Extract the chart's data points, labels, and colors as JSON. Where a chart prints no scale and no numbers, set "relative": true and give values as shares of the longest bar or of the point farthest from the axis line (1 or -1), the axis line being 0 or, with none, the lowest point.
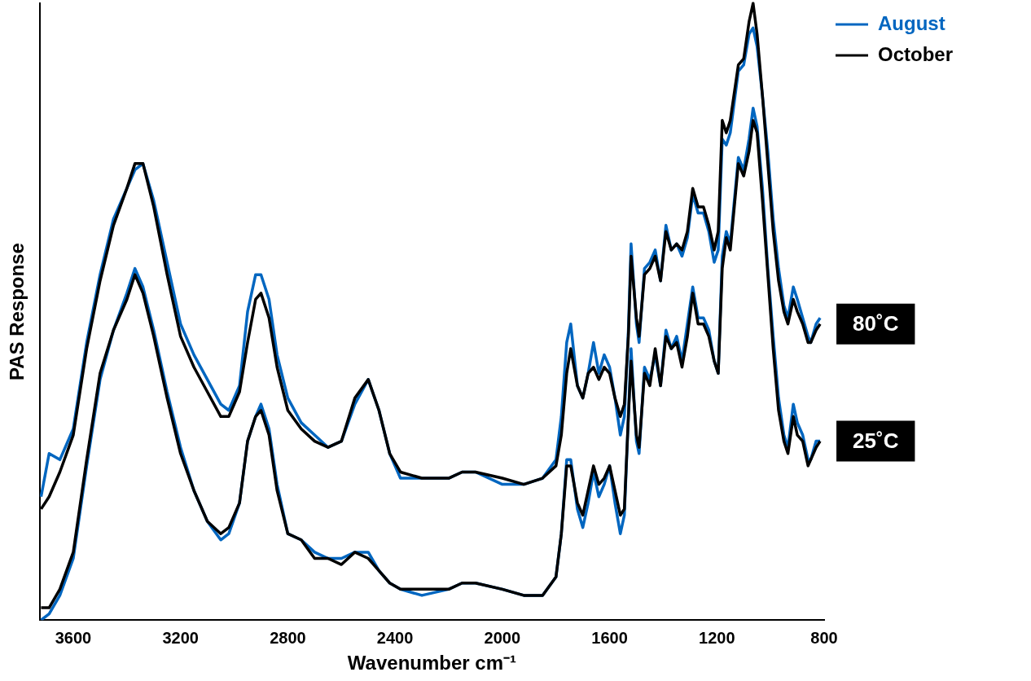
{
  "chart_data": {
    "type": "line",
    "xlabel": "Wavenumber cm⁻¹",
    "ylabel": "PAS Response",
    "relative": true,
    "legend": "top right",
    "xlim": [
      3725,
      800
    ],
    "xticks": [
      3600,
      3200,
      2800,
      2400,
      2000,
      1600,
      1200,
      800
    ],
    "x": [
      3720,
      3690,
      3650,
      3600,
      3550,
      3500,
      3450,
      3400,
      3370,
      3340,
      3300,
      3250,
      3200,
      3150,
      3100,
      3050,
      3020,
      2980,
      2950,
      2920,
      2900,
      2870,
      2840,
      2800,
      2750,
      2700,
      2650,
      2600,
      2550,
      2500,
      2460,
      2420,
      2380,
      2300,
      2200,
      2150,
      2100,
      2000,
      1920,
      1850,
      1800,
      1780,
      1760,
      1745,
      1720,
      1700,
      1680,
      1660,
      1640,
      1620,
      1600,
      1580,
      1560,
      1545,
      1530,
      1520,
      1500,
      1490,
      1470,
      1450,
      1430,
      1410,
      1390,
      1370,
      1350,
      1330,
      1310,
      1290,
      1270,
      1250,
      1230,
      1210,
      1195,
      1180,
      1165,
      1150,
      1120,
      1100,
      1080,
      1065,
      1050,
      1030,
      1010,
      990,
      970,
      950,
      935,
      915,
      900,
      880,
      860,
      850,
      830,
      815
    ],
    "series": [
      {
        "name": "August",
        "color": "#0066c0",
        "values": [
          0.2,
          0.27,
          0.26,
          0.31,
          0.45,
          0.56,
          0.65,
          0.7,
          0.73,
          0.74,
          0.68,
          0.58,
          0.48,
          0.43,
          0.39,
          0.35,
          0.34,
          0.38,
          0.5,
          0.56,
          0.56,
          0.52,
          0.43,
          0.36,
          0.32,
          0.3,
          0.28,
          0.29,
          0.35,
          0.39,
          0.34,
          0.27,
          0.23,
          0.23,
          0.23,
          0.24,
          0.24,
          0.22,
          0.22,
          0.23,
          0.26,
          0.33,
          0.45,
          0.48,
          0.38,
          0.36,
          0.4,
          0.45,
          0.4,
          0.43,
          0.41,
          0.36,
          0.3,
          0.33,
          0.47,
          0.61,
          0.48,
          0.45,
          0.57,
          0.58,
          0.6,
          0.55,
          0.64,
          0.6,
          0.61,
          0.59,
          0.62,
          0.69,
          0.66,
          0.66,
          0.63,
          0.58,
          0.6,
          0.78,
          0.77,
          0.79,
          0.89,
          0.9,
          0.95,
          0.96,
          0.93,
          0.85,
          0.76,
          0.65,
          0.57,
          0.51,
          0.49,
          0.54,
          0.52,
          0.49,
          0.46,
          0.45,
          0.48,
          0.49
        ]
      },
      {
        "name": "October",
        "color": "#000000",
        "values": [
          0.18,
          0.2,
          0.24,
          0.3,
          0.44,
          0.55,
          0.64,
          0.7,
          0.74,
          0.74,
          0.67,
          0.56,
          0.46,
          0.41,
          0.37,
          0.33,
          0.33,
          0.37,
          0.45,
          0.52,
          0.53,
          0.49,
          0.41,
          0.34,
          0.31,
          0.29,
          0.28,
          0.29,
          0.36,
          0.39,
          0.34,
          0.27,
          0.24,
          0.23,
          0.23,
          0.24,
          0.24,
          0.23,
          0.22,
          0.23,
          0.25,
          0.3,
          0.4,
          0.44,
          0.38,
          0.36,
          0.4,
          0.41,
          0.39,
          0.41,
          0.4,
          0.36,
          0.33,
          0.35,
          0.46,
          0.59,
          0.49,
          0.46,
          0.56,
          0.57,
          0.59,
          0.55,
          0.63,
          0.6,
          0.61,
          0.6,
          0.63,
          0.7,
          0.67,
          0.67,
          0.64,
          0.6,
          0.63,
          0.81,
          0.79,
          0.81,
          0.9,
          0.91,
          0.97,
          1.0,
          0.95,
          0.85,
          0.74,
          0.63,
          0.55,
          0.5,
          0.48,
          0.52,
          0.5,
          0.48,
          0.45,
          0.45,
          0.47,
          0.48
        ]
      },
      {
        "color": "#0066c0",
        "values": [
          0.0,
          0.01,
          0.04,
          0.1,
          0.25,
          0.39,
          0.47,
          0.53,
          0.57,
          0.54,
          0.47,
          0.37,
          0.28,
          0.21,
          0.16,
          0.13,
          0.14,
          0.19,
          0.29,
          0.33,
          0.35,
          0.31,
          0.22,
          0.14,
          0.13,
          0.11,
          0.1,
          0.1,
          0.11,
          0.11,
          0.08,
          0.06,
          0.05,
          0.04,
          0.05,
          0.06,
          0.06,
          0.05,
          0.04,
          0.04,
          0.07,
          0.14,
          0.26,
          0.26,
          0.18,
          0.15,
          0.19,
          0.24,
          0.2,
          0.22,
          0.25,
          0.19,
          0.14,
          0.17,
          0.33,
          0.44,
          0.29,
          0.27,
          0.41,
          0.39,
          0.43,
          0.38,
          0.47,
          0.44,
          0.46,
          0.42,
          0.48,
          0.54,
          0.49,
          0.49,
          0.47,
          0.42,
          0.4,
          0.59,
          0.63,
          0.61,
          0.75,
          0.73,
          0.78,
          0.83,
          0.8,
          0.7,
          0.57,
          0.46,
          0.36,
          0.3,
          0.28,
          0.35,
          0.32,
          0.3,
          0.26,
          0.26,
          0.29,
          0.29
        ]
      },
      {
        "color": "#000000",
        "values": [
          0.02,
          0.02,
          0.05,
          0.11,
          0.26,
          0.4,
          0.47,
          0.52,
          0.56,
          0.53,
          0.46,
          0.36,
          0.27,
          0.21,
          0.16,
          0.14,
          0.15,
          0.19,
          0.29,
          0.33,
          0.34,
          0.3,
          0.21,
          0.14,
          0.13,
          0.1,
          0.1,
          0.09,
          0.11,
          0.1,
          0.08,
          0.06,
          0.05,
          0.05,
          0.05,
          0.06,
          0.06,
          0.05,
          0.04,
          0.04,
          0.07,
          0.14,
          0.25,
          0.25,
          0.19,
          0.17,
          0.21,
          0.25,
          0.22,
          0.23,
          0.25,
          0.21,
          0.17,
          0.18,
          0.33,
          0.42,
          0.3,
          0.28,
          0.4,
          0.38,
          0.44,
          0.38,
          0.46,
          0.44,
          0.45,
          0.41,
          0.46,
          0.53,
          0.48,
          0.48,
          0.46,
          0.42,
          0.4,
          0.57,
          0.62,
          0.6,
          0.74,
          0.72,
          0.76,
          0.81,
          0.79,
          0.68,
          0.56,
          0.44,
          0.34,
          0.29,
          0.27,
          0.33,
          0.3,
          0.29,
          0.25,
          0.26,
          0.28,
          0.29
        ]
      }
    ],
    "annotations": [
      {
        "text": "80˚C",
        "x": 815,
        "y": 0.48
      },
      {
        "text": "25˚C",
        "x": 815,
        "y": 0.29
      }
    ]
  }
}
